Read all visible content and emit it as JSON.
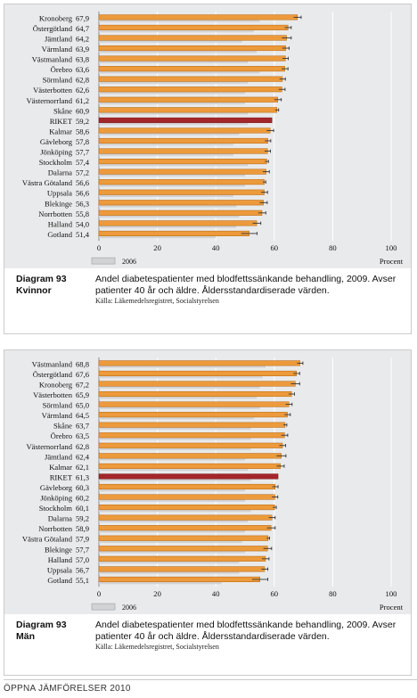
{
  "chart_data": [
    {
      "type": "bar",
      "orientation": "horizontal",
      "categories": [
        "Kronoberg",
        "Östergötland",
        "Jämtland",
        "Värmland",
        "Västmanland",
        "Örebro",
        "Sörmland",
        "Västerbotten",
        "Västernorrland",
        "Skåne",
        "RIKET",
        "Kalmar",
        "Gävleborg",
        "Jönköping",
        "Stockholm",
        "Dalarna",
        "Västra Götaland",
        "Uppsala",
        "Blekinge",
        "Norrbotten",
        "Halland",
        "Gotland"
      ],
      "value_labels": [
        "67,9",
        "64,7",
        "64,2",
        "63,9",
        "63,8",
        "63,6",
        "62,8",
        "62,6",
        "61,2",
        "60,9",
        "59,2",
        "58,6",
        "57,8",
        "57,7",
        "57,4",
        "57,2",
        "56,6",
        "56,6",
        "56,3",
        "55,8",
        "54,0",
        "51,4"
      ],
      "series": [
        {
          "values": [
            67.9,
            64.7,
            64.2,
            63.9,
            63.8,
            63.6,
            62.8,
            62.6,
            61.2,
            60.9,
            59.2,
            58.6,
            57.8,
            57.7,
            57.4,
            57.2,
            56.6,
            56.6,
            56.3,
            55.8,
            54.0,
            51.4
          ]
        },
        {
          "name": "2006",
          "values": [
            55,
            53,
            49,
            54,
            51,
            55,
            51,
            50,
            50,
            51,
            51,
            48,
            46,
            46,
            51,
            50,
            50,
            46,
            47,
            48,
            47,
            40
          ]
        }
      ],
      "error_bar_half_width": [
        1.3,
        1.1,
        1.6,
        1.2,
        1.0,
        1.1,
        1.0,
        1.1,
        1.2,
        0.6,
        0.2,
        1.2,
        1.0,
        1.0,
        0.6,
        1.1,
        0.5,
        1.1,
        1.3,
        1.3,
        1.4,
        2.7
      ],
      "highlight_category": "RIKET",
      "xlim": [
        0,
        100
      ],
      "xticks": [
        "0",
        "20",
        "40",
        "60",
        "80",
        "100"
      ],
      "xlabel": "Procent",
      "legend": "2006",
      "grid": true,
      "title_label": "Diagram 93",
      "subgroup": "Kvinnor"
    },
    {
      "type": "bar",
      "orientation": "horizontal",
      "categories": [
        "Västmanland",
        "Östergötland",
        "Kronoberg",
        "Västerbotten",
        "Sörmland",
        "Värmland",
        "Skåne",
        "Örebro",
        "Västernorrland",
        "Jämtland",
        "Kalmar",
        "RIKET",
        "Gävleborg",
        "Jönköping",
        "Stockholm",
        "Dalarna",
        "Norrbotten",
        "Västra Götaland",
        "Blekinge",
        "Halland",
        "Uppsala",
        "Gotland"
      ],
      "value_labels": [
        "68,8",
        "67,6",
        "67,2",
        "65,9",
        "65,0",
        "64,5",
        "63,7",
        "63,5",
        "62,8",
        "62,4",
        "62,1",
        "61,3",
        "60,3",
        "60,2",
        "60,1",
        "59,2",
        "58,9",
        "57,9",
        "57,7",
        "57,0",
        "56,7",
        "55,1"
      ],
      "series": [
        {
          "values": [
            68.8,
            67.6,
            67.2,
            65.9,
            65.0,
            64.5,
            63.7,
            63.5,
            62.8,
            62.4,
            62.1,
            61.3,
            60.3,
            60.2,
            60.1,
            59.2,
            58.9,
            57.9,
            57.7,
            57.0,
            56.7,
            55.1
          ]
        },
        {
          "name": "2006",
          "values": [
            57,
            56,
            55,
            54,
            55,
            53,
            52,
            52,
            52,
            50,
            51,
            52,
            50,
            50,
            52,
            51,
            50,
            49,
            50,
            48,
            48,
            42
          ]
        }
      ],
      "error_bar_half_width": [
        1.0,
        1.1,
        1.5,
        1.0,
        1.1,
        1.0,
        0.6,
        1.1,
        1.1,
        1.6,
        1.3,
        0.2,
        1.0,
        1.0,
        0.6,
        1.1,
        1.4,
        0.5,
        1.4,
        1.2,
        1.1,
        2.7
      ],
      "highlight_category": "RIKET",
      "xlim": [
        0,
        100
      ],
      "xticks": [
        "0",
        "20",
        "40",
        "60",
        "80",
        "100"
      ],
      "xlabel": "Procent",
      "legend": "2006",
      "grid": true,
      "title_label": "Diagram 93",
      "subgroup": "Män"
    }
  ],
  "captions": [
    {
      "label": "Diagram 93",
      "sublabel": "Kvinnor",
      "text": "Andel diabetespatienter med blodfettssänkande behandling, 2009. Avser patienter 40 år och äldre. Åldersstandardiserade värden.",
      "source": "Källa: Läkemedelsregistret, Socialstyrelsen"
    },
    {
      "label": "Diagram 93",
      "sublabel": "Män",
      "text": "Andel diabetespatienter med blodfettssänkande behandling, 2009. Avser patienter 40 år och äldre. Åldersstandardiserade värden.",
      "source": "Källa: Läkemedelsregistret, Socialstyrelsen"
    }
  ],
  "colors": {
    "bar": "#ec9a3b",
    "bar_edge": "#b5650f",
    "highlight": "#a3262a",
    "bar_2006": "#d2d3d5",
    "grid": "#ffffff",
    "chart_bg": "#e9eaeb"
  },
  "footer": "ÖPPNA JÄMFÖRELSER 2010"
}
